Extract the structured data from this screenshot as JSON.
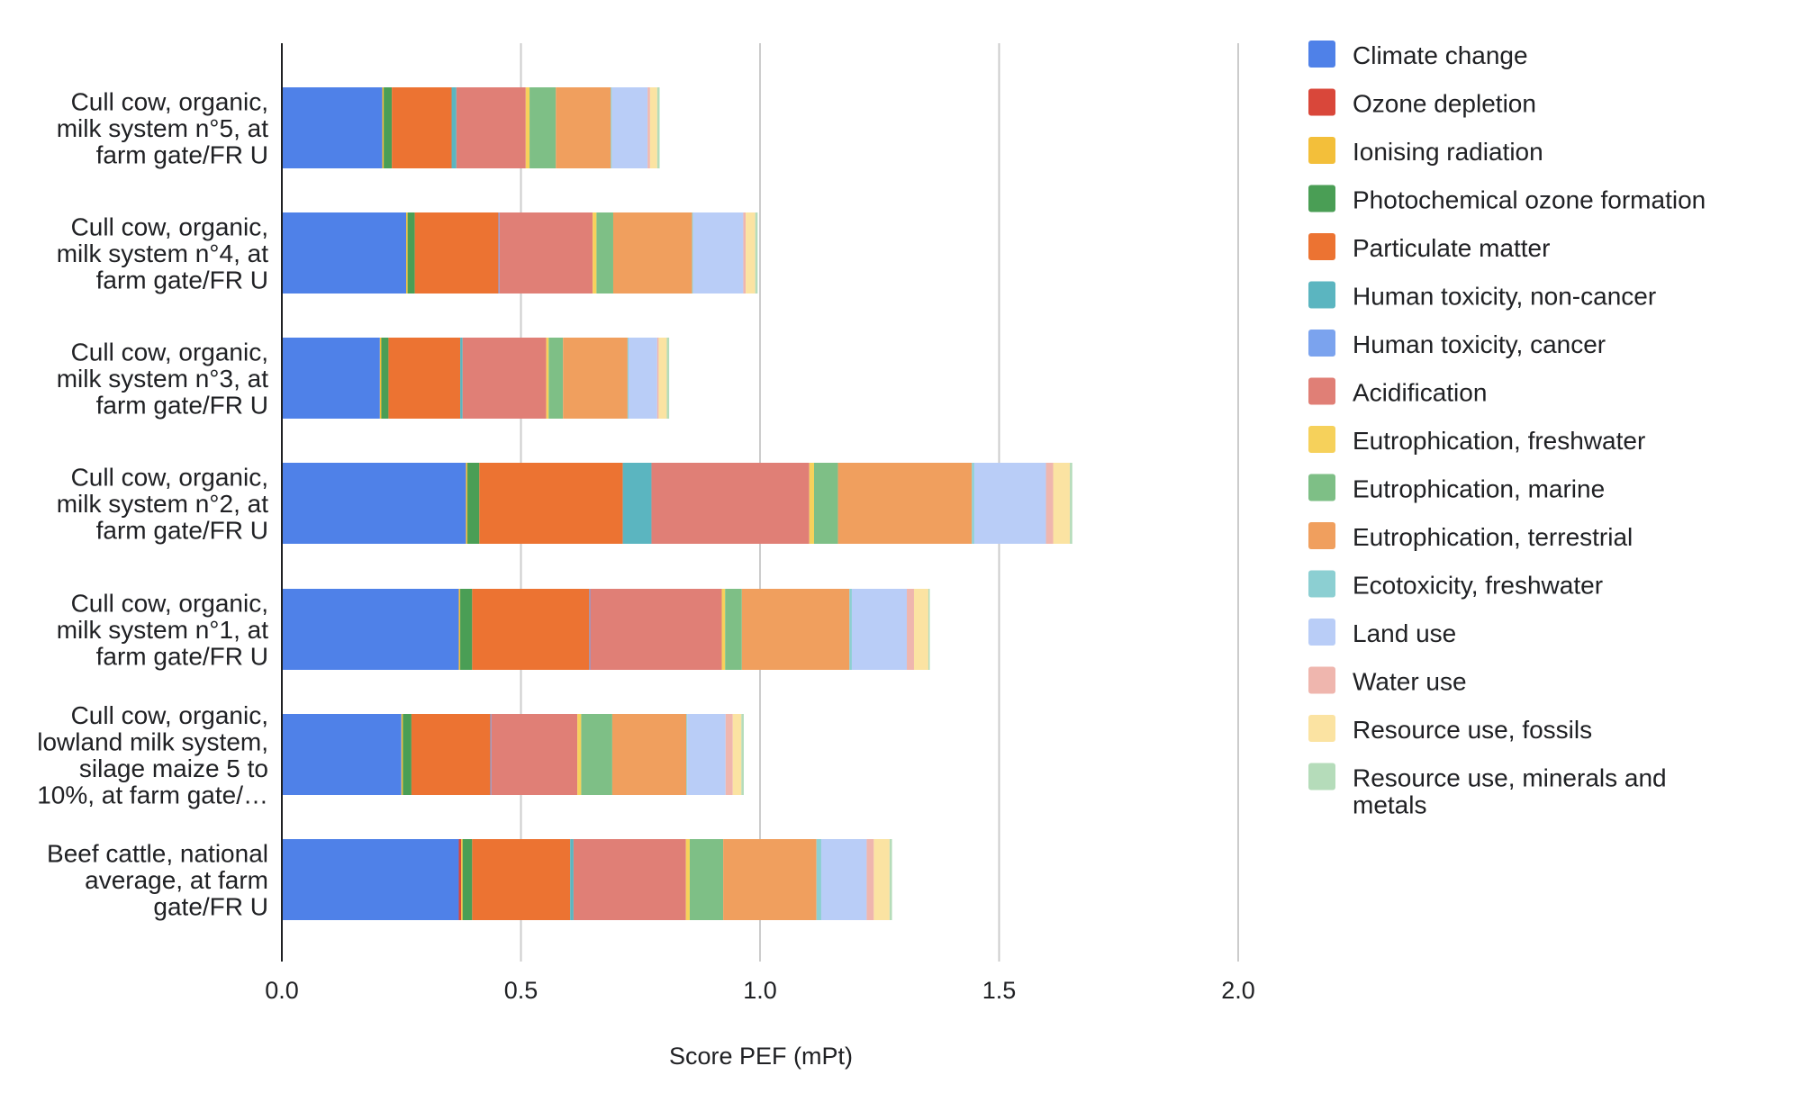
{
  "chart_data": {
    "type": "bar",
    "orientation": "horizontal",
    "stacked": true,
    "xlabel": "Score PEF (mPt)",
    "ylabel": "",
    "xlim": [
      0,
      2.0
    ],
    "xticks": [
      "0.0",
      "0.5",
      "1.0",
      "1.5",
      "2.0"
    ],
    "grid": true,
    "legend_position": "right",
    "categories": [
      [
        "Cull cow, organic,",
        "milk system n°5, at",
        "farm gate/FR U"
      ],
      [
        "Cull cow, organic,",
        "milk system n°4, at",
        "farm gate/FR U"
      ],
      [
        "Cull cow, organic,",
        "milk system n°3, at",
        "farm gate/FR U"
      ],
      [
        "Cull cow, organic,",
        "milk system n°2, at",
        "farm gate/FR U"
      ],
      [
        "Cull cow, organic,",
        "milk system n°1, at",
        "farm gate/FR U"
      ],
      [
        "Cull cow, organic,",
        "lowland milk system,",
        "silage maize 5 to",
        "10%, at farm gate/…"
      ],
      [
        "Beef cattle, national",
        "average, at farm",
        "gate/FR U"
      ]
    ],
    "series": [
      {
        "name": "Climate change",
        "color": "#4f81e8",
        "values": [
          0.21,
          0.26,
          0.205,
          0.385,
          0.37,
          0.25,
          0.37
        ]
      },
      {
        "name": "Ozone depletion",
        "color": "#d9473a",
        "values": [
          0.0,
          0.0,
          0.0,
          0.0,
          0.0,
          0.0,
          0.005
        ]
      },
      {
        "name": "Ionising radiation",
        "color": "#f3bf3a",
        "values": [
          0.003,
          0.003,
          0.003,
          0.003,
          0.003,
          0.003,
          0.003
        ]
      },
      {
        "name": "Photochemical ozone formation",
        "color": "#4a9e55",
        "values": [
          0.017,
          0.015,
          0.015,
          0.025,
          0.025,
          0.018,
          0.02
        ]
      },
      {
        "name": "Particulate matter",
        "color": "#ec7332",
        "values": [
          0.125,
          0.175,
          0.15,
          0.3,
          0.245,
          0.165,
          0.205
        ]
      },
      {
        "name": "Human toxicity, non-cancer",
        "color": "#5bb5c0",
        "values": [
          0.01,
          0.0,
          0.005,
          0.06,
          0.0,
          0.0,
          0.007
        ]
      },
      {
        "name": "Human toxicity, cancer",
        "color": "#7ba3ee",
        "values": [
          0.0,
          0.002,
          0.0,
          0.0,
          0.002,
          0.002,
          0.0
        ]
      },
      {
        "name": "Acidification",
        "color": "#e07f76",
        "values": [
          0.145,
          0.195,
          0.175,
          0.33,
          0.275,
          0.18,
          0.235
        ]
      },
      {
        "name": "Eutrophication, freshwater",
        "color": "#f6d15b",
        "values": [
          0.008,
          0.008,
          0.005,
          0.01,
          0.007,
          0.008,
          0.008
        ]
      },
      {
        "name": "Eutrophication, marine",
        "color": "#7ebf86",
        "values": [
          0.055,
          0.035,
          0.03,
          0.05,
          0.035,
          0.065,
          0.07
        ]
      },
      {
        "name": "Eutrophication, terrestrial",
        "color": "#f09f5e",
        "values": [
          0.115,
          0.165,
          0.135,
          0.28,
          0.225,
          0.155,
          0.195
        ]
      },
      {
        "name": "Ecotoxicity, freshwater",
        "color": "#8ccfd2",
        "values": [
          0.002,
          0.002,
          0.002,
          0.005,
          0.005,
          0.002,
          0.01
        ]
      },
      {
        "name": "Land use",
        "color": "#b9cdf7",
        "values": [
          0.075,
          0.105,
          0.06,
          0.15,
          0.115,
          0.08,
          0.095
        ]
      },
      {
        "name": "Water use",
        "color": "#efb6ae",
        "values": [
          0.005,
          0.005,
          0.003,
          0.015,
          0.015,
          0.015,
          0.015
        ]
      },
      {
        "name": "Resource use, fossils",
        "color": "#fbe3a2",
        "values": [
          0.015,
          0.02,
          0.017,
          0.035,
          0.03,
          0.018,
          0.033
        ]
      },
      {
        "name": "Resource use, minerals and metals",
        "color": "#b5dcba",
        "values": [
          0.005,
          0.005,
          0.005,
          0.005,
          0.003,
          0.005,
          0.005
        ]
      }
    ]
  }
}
